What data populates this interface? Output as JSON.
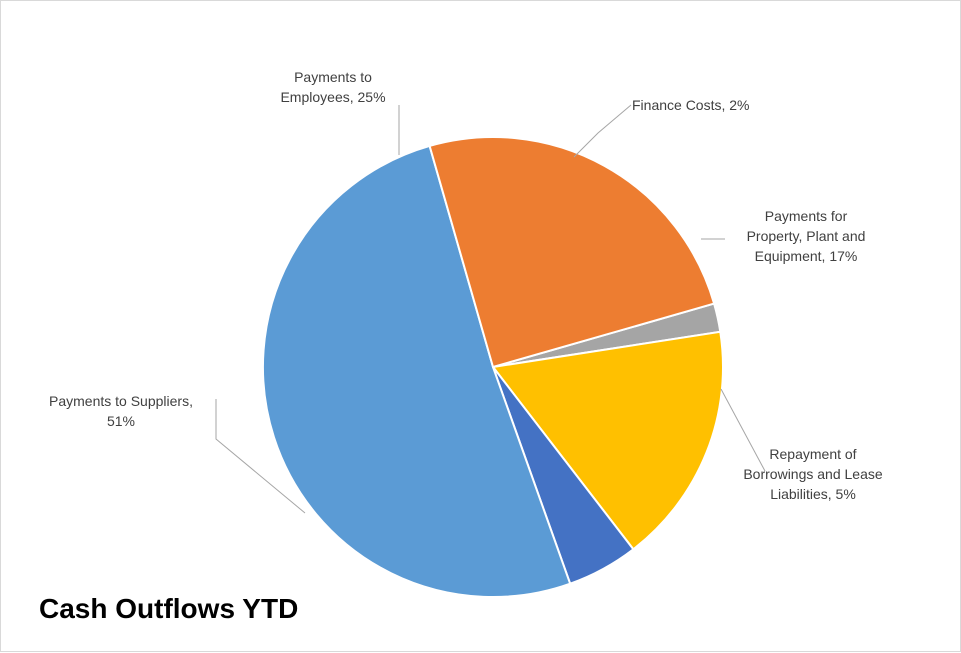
{
  "chart_data": {
    "type": "pie",
    "title": "Cash Outflows YTD",
    "slices": [
      {
        "name": "Finance Costs",
        "value": 2,
        "label": [
          "Finance Costs, 2%"
        ],
        "color": "#A5A5A5"
      },
      {
        "name": "Payments for Property, Plant and Equipment",
        "value": 17,
        "label": [
          "Payments for",
          "Property, Plant and",
          "Equipment, 17%"
        ],
        "color": "#FFC000"
      },
      {
        "name": "Repayment of Borrowings and Lease Liabilities",
        "value": 5,
        "label": [
          "Repayment of",
          "Borrowings and Lease",
          "Liabilities, 5%"
        ],
        "color": "#4472C4"
      },
      {
        "name": "Payments to Suppliers",
        "value": 51,
        "label": [
          "Payments to Suppliers,",
          "51%"
        ],
        "color": "#5B9BD5"
      },
      {
        "name": "Payments to Employees",
        "value": 25,
        "label": [
          "Payments to",
          "Employees, 25%"
        ],
        "color": "#ED7D31"
      }
    ]
  }
}
